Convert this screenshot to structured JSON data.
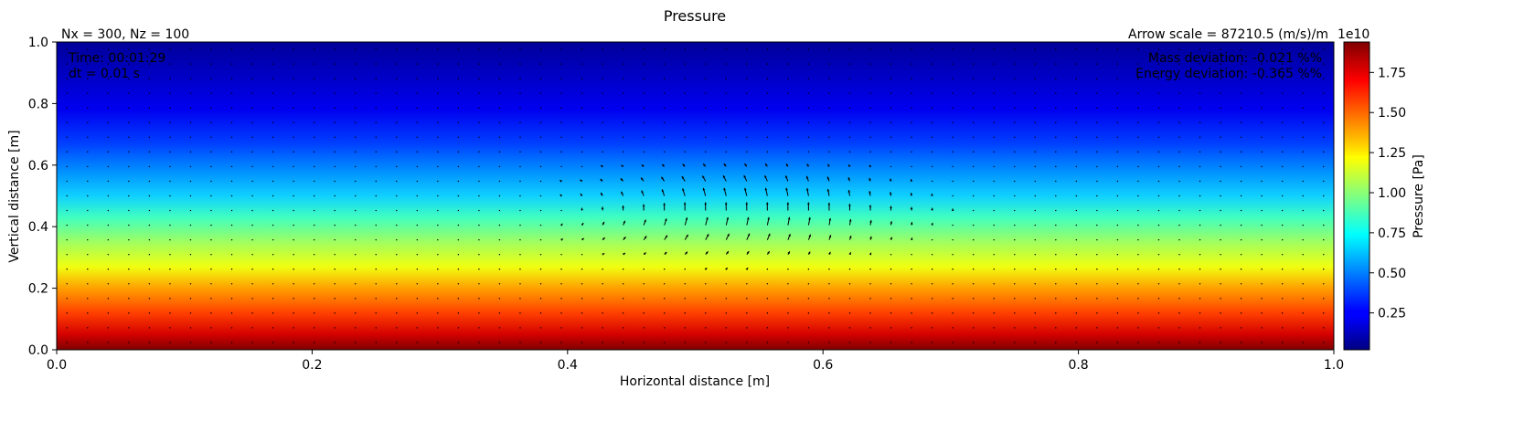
{
  "chart_data": {
    "type": "heatmap",
    "title": "Pressure",
    "xlabel": "Horizontal distance [m]",
    "ylabel": "Vertical distance [m]",
    "xlim": [
      0.0,
      1.0
    ],
    "ylim": [
      0.0,
      1.0
    ],
    "xticks": [
      "0.0",
      "0.2",
      "0.4",
      "0.6",
      "0.8",
      "1.0"
    ],
    "xtick_values": [
      0.0,
      0.2,
      0.4,
      0.6,
      0.8,
      1.0
    ],
    "yticks": [
      "0.0",
      "0.2",
      "0.4",
      "0.6",
      "0.8",
      "1.0"
    ],
    "ytick_values": [
      0.0,
      0.2,
      0.4,
      0.6,
      0.8,
      1.0
    ],
    "grid_info": "Nx = 300, Nz = 100",
    "arrow_scale": "Arrow scale = 87210.5 (m/s)/m",
    "time_text": "Time: 00:01:29",
    "dt_text": "dt = 0.01 s",
    "mass_text": "Mass deviation: -0.021 %%",
    "energy_text": "Energy deviation: -0.365 %%",
    "colorbar": {
      "label": "Pressure [Pa]",
      "exponent": "1e10",
      "colormap": "jet",
      "range": [
        0.02,
        1.94
      ],
      "ticks": [
        "0.25",
        "0.50",
        "0.75",
        "1.00",
        "1.25",
        "1.50",
        "1.75"
      ],
      "tick_values": [
        0.25,
        0.5,
        0.75,
        1.0,
        1.25,
        1.5,
        1.75
      ]
    },
    "field": {
      "description": "hydrostatic pressure decreasing with height",
      "pressure_at_bottom": 1.94,
      "pressure_at_top": 0.02
    },
    "vector_field": {
      "vortex_center": [
        0.5,
        0.45
      ],
      "vortex_radius": 0.17
    }
  }
}
